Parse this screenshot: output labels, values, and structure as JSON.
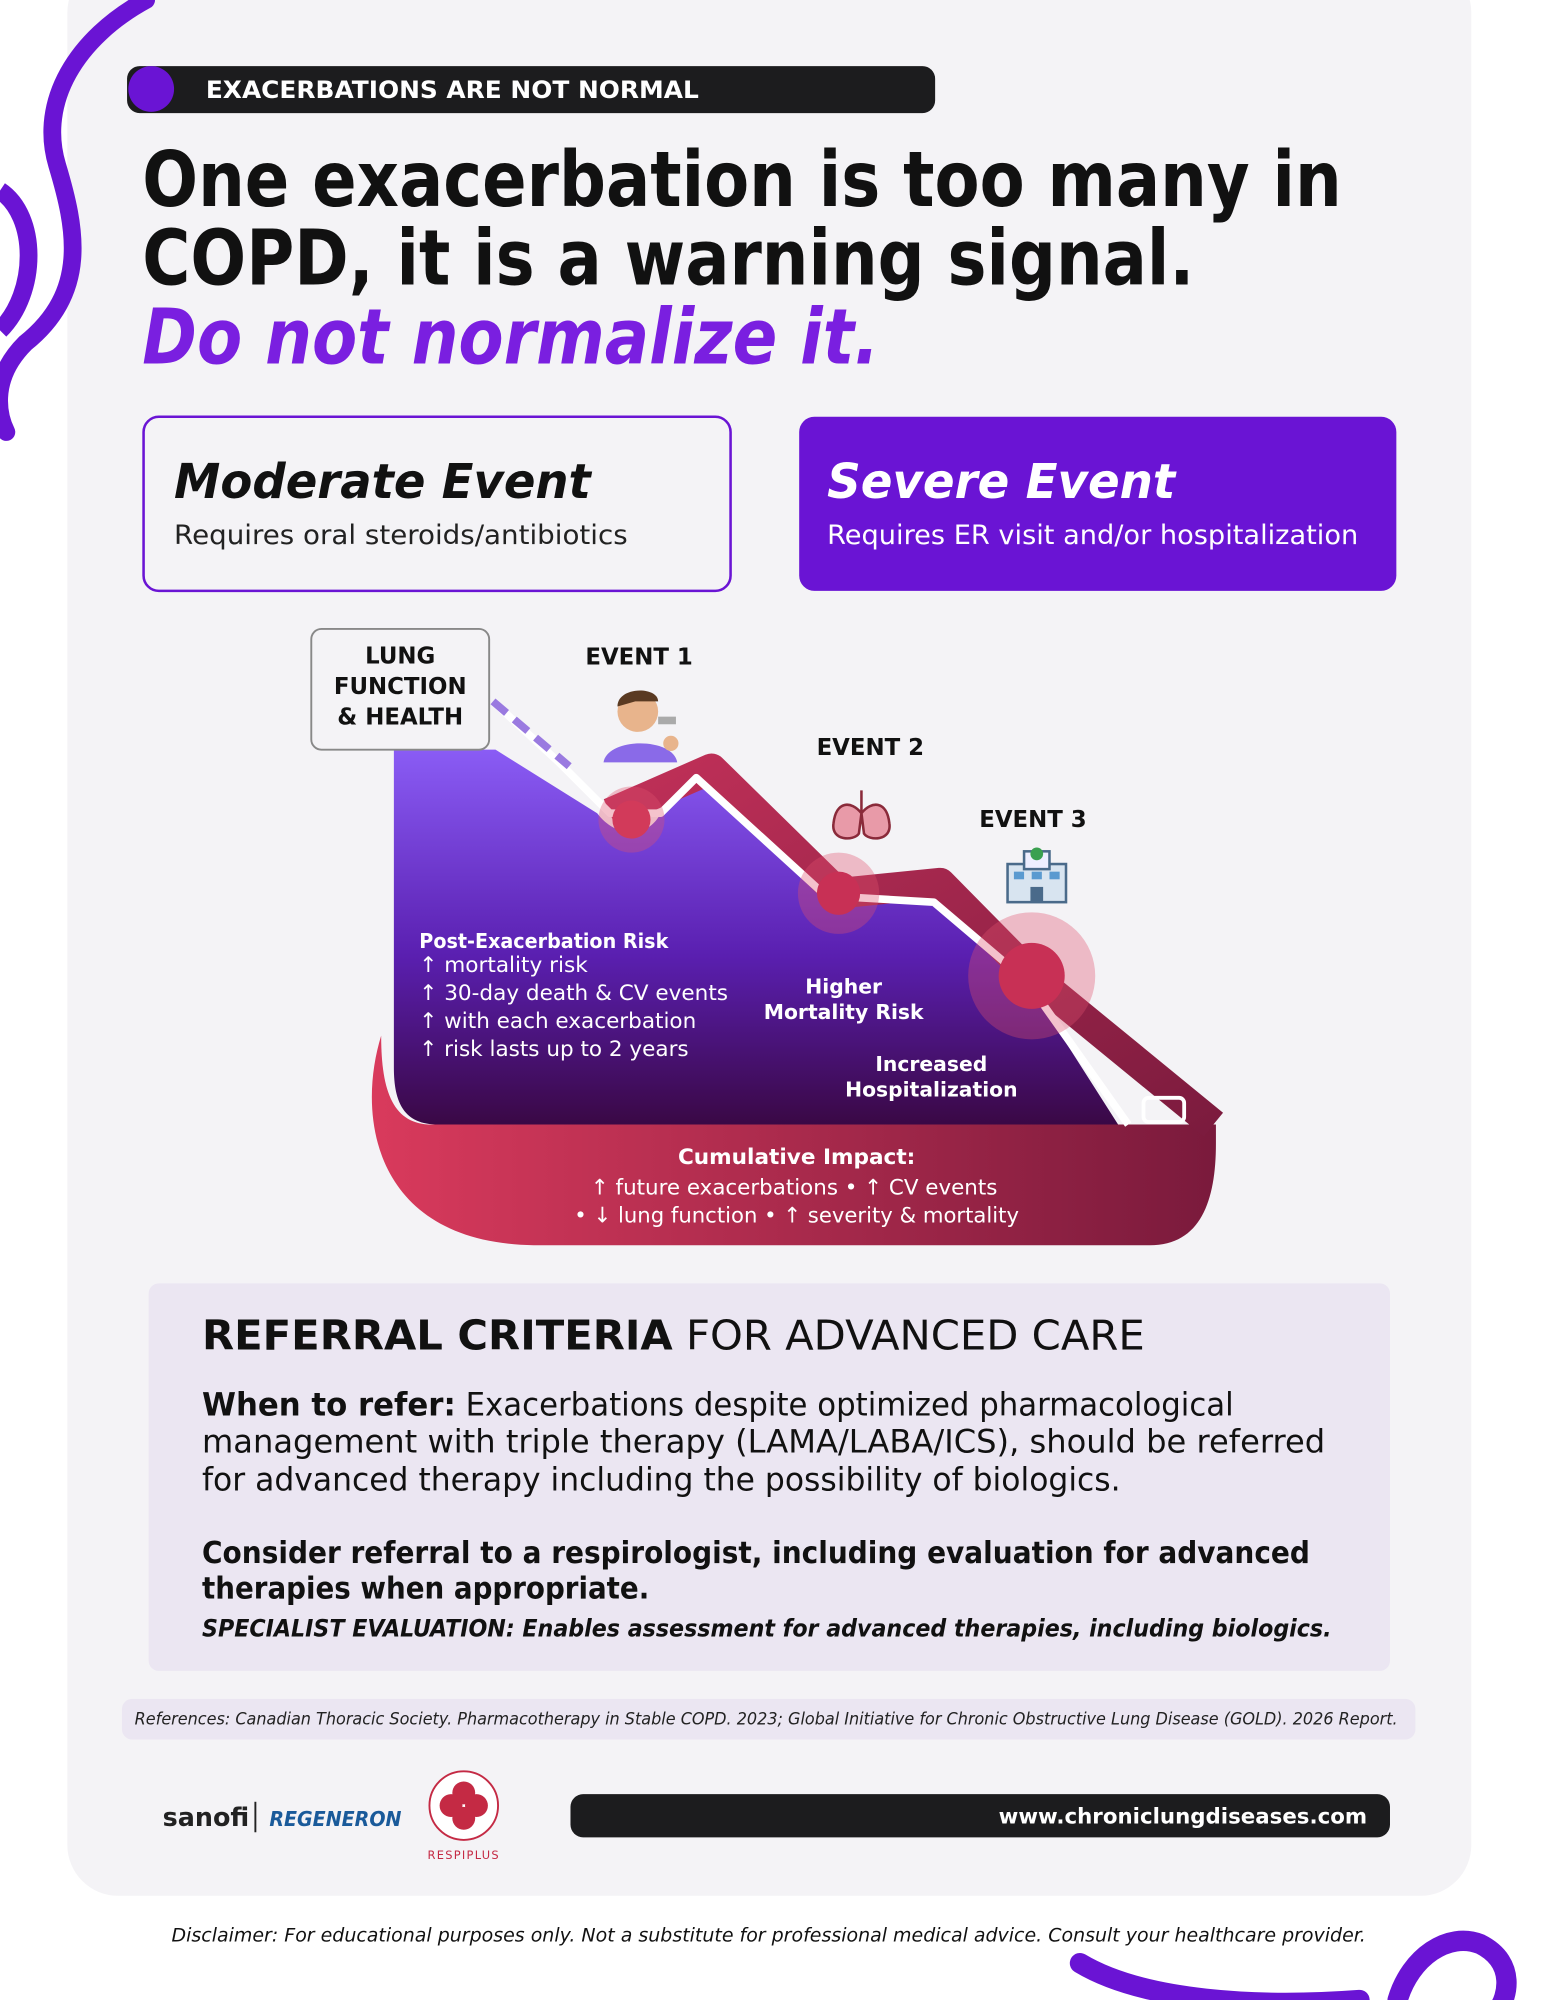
{
  "tag": "EXACERBATIONS ARE NOT NORMAL",
  "headline": {
    "lines": [
      "One exacerbation is too many in",
      "COPD, it is a warning signal."
    ],
    "emphasis": "Do not normalize it."
  },
  "events": {
    "moderate": {
      "title": "Moderate Event",
      "desc": "Requires oral steroids/antibiotics"
    },
    "severe": {
      "title": "Severe Event",
      "desc": "Requires ER visit and/or hospitalization"
    }
  },
  "diagram": {
    "axis_label": [
      "LUNG",
      "FUNCTION",
      "& HEALTH"
    ],
    "event_labels": [
      "EVENT 1",
      "EVENT 2",
      "EVENT 3"
    ],
    "post_risk": {
      "title": "Post-Exacerbation Risk",
      "items": [
        "↑ mortality risk",
        "↑ 30-day death & CV events",
        "↑ with each exacerbation",
        "↑ risk lasts up to 2 years"
      ]
    },
    "mortality": [
      "Higher",
      "Mortality Risk"
    ],
    "hospitalization": [
      "Increased",
      "Hospitalization"
    ],
    "cumulative": {
      "title": "Cumulative Impact:",
      "lines": [
        "↑ future exacerbations • ↑ CV events",
        "• ↓ lung function • ↑ severity & mortality"
      ]
    }
  },
  "referral": {
    "heading_bold": "REFERRAL CRITERIA",
    "heading_rest": "FOR ADVANCED CARE",
    "when_label": "When to refer:",
    "when_lines": [
      "Exacerbations despite optimized pharmacological",
      "management with triple therapy (LAMA/LABA/ICS), should be referred",
      "for advanced therapy including the possibility of biologics."
    ],
    "consider_lines": [
      "Consider referral to a respirologist, including evaluation for advanced",
      "therapies when appropriate."
    ],
    "specialist": "SPECIALIST EVALUATION: Enables assessment for advanced therapies, including biologics."
  },
  "references": "References: Canadian Thoracic Society. Pharmacotherapy in Stable COPD. 2023; Global Initiative for Chronic Obstructive Lung Disease (GOLD). 2026 Report.",
  "logos": [
    "sanofi",
    "REGENERON",
    "RESPIPLUS"
  ],
  "url": "www.chroniclungdiseases.com",
  "disclaimer": "Disclaimer: For educational purposes only. Not a substitute for professional medical advice. Consult your healthcare provider."
}
